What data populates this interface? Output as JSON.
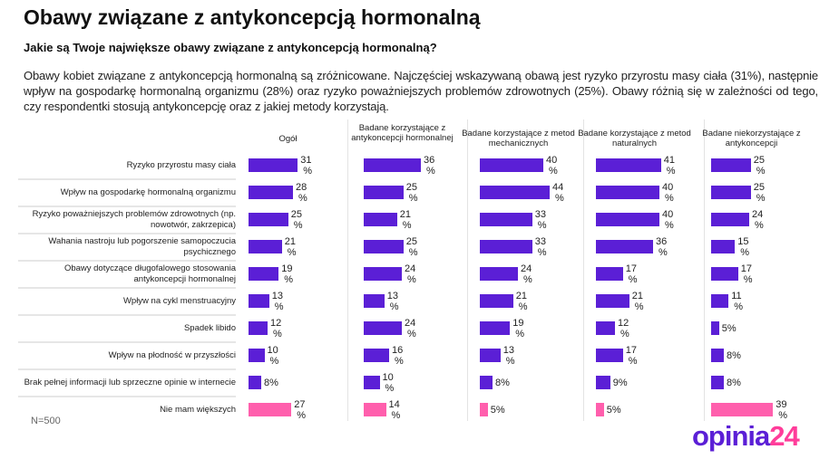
{
  "title": "Obawy związane z antykoncepcją hormonalną",
  "question": "Jakie są Twoje największe obawy związane z antykoncepcją hormonalną?",
  "description": "Obawy kobiet związane z antykoncepcją hormonalną są zróżnicowane. Najczęściej wskazywaną obawą jest ryzyko przyrostu masy ciała (31%), następnie wpływ na gospodarkę hormonalną organizmu (28%) oraz ryzyko poważniejszych problemów zdrowotnych (25%). Obawy różnią się w zależności od tego, czy respondentki stosują antykoncepcję oraz z jakiej metody korzystają.",
  "sample": "N=500",
  "logo": {
    "part1": "opinia",
    "part2": "24"
  },
  "colors": {
    "bar": "#5b1fd6",
    "highlight": "#ff5fad",
    "logo_purple": "#5b1fd6",
    "logo_pink": "#ff3d9a"
  },
  "chart_data": {
    "type": "bar",
    "orientation": "horizontal",
    "unit": "%",
    "categories": [
      "Ryzyko przyrostu masy ciała",
      "Wpływ na gospodarkę hormonalną organizmu",
      "Ryzyko poważniejszych problemów zdrowotnych (np. nowotwór, zakrzepica)",
      "Wahania nastroju lub pogorszenie samopoczucia psychicznego",
      "Obawy dotyczące długofalowego stosowania antykoncepcji hormonalnej",
      "Wpływ na cykl menstruacyjny",
      "Spadek libido",
      "Wpływ na płodność w przyszłości",
      "Brak pełnej informacji lub sprzeczne opinie w internecie",
      "Nie mam większych"
    ],
    "series": [
      {
        "name": "Ogół",
        "values": [
          31,
          28,
          25,
          21,
          19,
          13,
          12,
          10,
          8,
          27
        ]
      },
      {
        "name": "Badane korzystające z antykoncepcji hormonalnej",
        "values": [
          36,
          25,
          21,
          25,
          24,
          13,
          24,
          16,
          10,
          14
        ]
      },
      {
        "name": "Badane korzystające z metod mechanicznych",
        "values": [
          40,
          44,
          33,
          33,
          24,
          21,
          19,
          13,
          8,
          5
        ]
      },
      {
        "name": "Badane korzystające z metod naturalnych",
        "values": [
          41,
          40,
          40,
          36,
          17,
          21,
          12,
          17,
          9,
          5
        ]
      },
      {
        "name": "Badane niekorzystające z antykoncepcji",
        "values": [
          25,
          25,
          24,
          15,
          17,
          11,
          5,
          8,
          8,
          39
        ]
      }
    ],
    "highlighted_category": "Nie mam większych"
  }
}
